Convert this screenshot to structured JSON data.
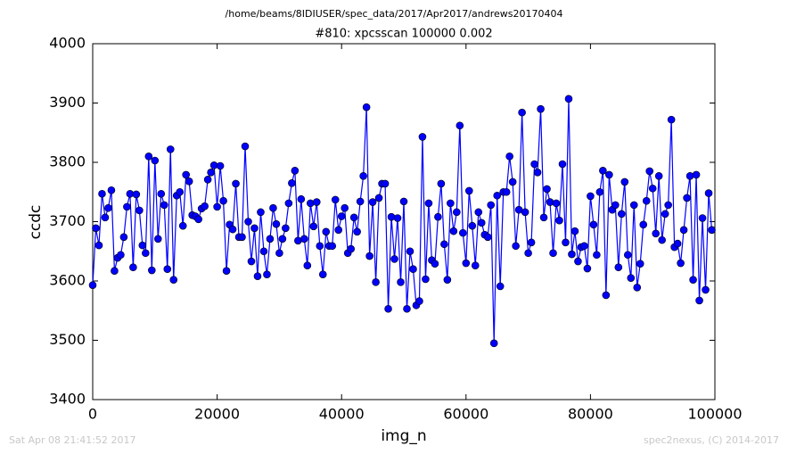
{
  "chart_data": {
    "type": "line",
    "suptitle": "/home/beams/8IDIUSER/spec_data/2017/Apr2017/andrews20170404",
    "title": "#810: xpcsscan 100000 0.002",
    "x_label": "img_n",
    "y_label": "ccdc",
    "footer_left": "Sat Apr 08 21:41:52 2017",
    "footer_right": "spec2nexus, (C) 2014-2017",
    "xlim": [
      0,
      100000
    ],
    "ylim": [
      3400,
      4000
    ],
    "xticks": [
      0,
      20000,
      40000,
      60000,
      80000,
      100000
    ],
    "yticks": [
      3400,
      3500,
      3600,
      3700,
      3800,
      3900,
      4000
    ],
    "grid": false,
    "x": [
      0,
      500,
      1000,
      1500,
      2000,
      2500,
      3000,
      3500,
      4000,
      4500,
      5000,
      5500,
      6000,
      6500,
      7000,
      7500,
      8000,
      8500,
      9000,
      9500,
      10000,
      10500,
      11000,
      11500,
      12000,
      12500,
      13000,
      13500,
      14000,
      14500,
      15000,
      15500,
      16000,
      16500,
      17000,
      17500,
      18000,
      18500,
      19000,
      19500,
      20000,
      20500,
      21000,
      21500,
      22000,
      22500,
      23000,
      23500,
      24000,
      24500,
      25000,
      25500,
      26000,
      26500,
      27000,
      27500,
      28000,
      28500,
      29000,
      29500,
      30000,
      30500,
      31000,
      31500,
      32000,
      32500,
      33000,
      33500,
      34000,
      34500,
      35000,
      35500,
      36000,
      36500,
      37000,
      37500,
      38000,
      38500,
      39000,
      39500,
      40000,
      40500,
      41000,
      41500,
      42000,
      42500,
      43000,
      43500,
      44000,
      44500,
      45000,
      45500,
      46000,
      46500,
      47000,
      47500,
      48000,
      48500,
      49000,
      49500,
      50000,
      50500,
      51000,
      51500,
      52000,
      52500,
      53000,
      53500,
      54000,
      54500,
      55000,
      55500,
      56000,
      56500,
      57000,
      57500,
      58000,
      58500,
      59000,
      59500,
      60000,
      60500,
      61000,
      61500,
      62000,
      62500,
      63000,
      63500,
      64000,
      64500,
      65000,
      65500,
      66000,
      66500,
      67000,
      67500,
      68000,
      68500,
      69000,
      69500,
      70000,
      70500,
      71000,
      71500,
      72000,
      72500,
      73000,
      73500,
      74000,
      74500,
      75000,
      75500,
      76000,
      76500,
      77000,
      77500,
      78000,
      78500,
      79000,
      79500,
      80000,
      80500,
      81000,
      81500,
      82000,
      82500,
      83000,
      83500,
      84000,
      84500,
      85000,
      85500,
      86000,
      86500,
      87000,
      87500,
      88000,
      88500,
      89000,
      89500,
      90000,
      90500,
      91000,
      91500,
      92000,
      92500,
      93000,
      93500,
      94000,
      94500,
      95000,
      95500,
      96000,
      96500,
      97000,
      97500,
      98000,
      98500,
      99000,
      99500
    ],
    "series": [
      {
        "color": "#0000ff",
        "values": [
          3593,
          3689,
          3660,
          3747,
          3707,
          3723,
          3753,
          3617,
          3639,
          3644,
          3674,
          3725,
          3747,
          3623,
          3746,
          3719,
          3660,
          3647,
          3810,
          3618,
          3803,
          3671,
          3747,
          3728,
          3620,
          3822,
          3602,
          3744,
          3750,
          3693,
          3779,
          3768,
          3711,
          3709,
          3704,
          3722,
          3726,
          3771,
          3783,
          3795,
          3725,
          3794,
          3735,
          3617,
          3695,
          3687,
          3764,
          3674,
          3674,
          3827,
          3700,
          3633,
          3689,
          3608,
          3716,
          3650,
          3611,
          3671,
          3723,
          3696,
          3647,
          3671,
          3689,
          3731,
          3765,
          3786,
          3668,
          3738,
          3671,
          3626,
          3731,
          3692,
          3733,
          3659,
          3611,
          3683,
          3659,
          3659,
          3737,
          3686,
          3709,
          3723,
          3647,
          3654,
          3707,
          3683,
          3734,
          3777,
          3893,
          3642,
          3733,
          3598,
          3740,
          3764,
          3764,
          3553,
          3708,
          3637,
          3706,
          3598,
          3734,
          3553,
          3650,
          3620,
          3559,
          3566,
          3843,
          3603,
          3731,
          3635,
          3629,
          3708,
          3764,
          3662,
          3602,
          3731,
          3684,
          3716,
          3862,
          3681,
          3630,
          3752,
          3693,
          3626,
          3716,
          3698,
          3678,
          3674,
          3728,
          3495,
          3744,
          3591,
          3750,
          3750,
          3810,
          3767,
          3659,
          3720,
          3884,
          3716,
          3647,
          3665,
          3797,
          3783,
          3890,
          3707,
          3755,
          3733,
          3647,
          3731,
          3702,
          3797,
          3665,
          3907,
          3645,
          3684,
          3633,
          3657,
          3659,
          3621,
          3743,
          3695,
          3644,
          3750,
          3786,
          3576,
          3779,
          3720,
          3728,
          3623,
          3713,
          3767,
          3644,
          3605,
          3728,
          3589,
          3629,
          3695,
          3735,
          3785,
          3756,
          3680,
          3777,
          3669,
          3713,
          3728,
          3872,
          3657,
          3663,
          3630,
          3686,
          3740,
          3777,
          3602,
          3779,
          3567,
          3706,
          3585,
          3748,
          3686
        ]
      }
    ]
  }
}
